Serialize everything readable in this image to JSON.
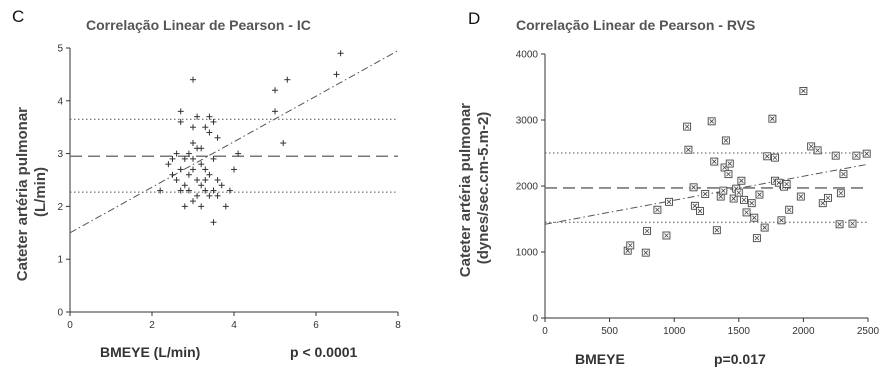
{
  "chart_data": [
    {
      "type": "scatter",
      "panel": "C",
      "title": "Correlação Linear de Pearson - IC",
      "xlabel": "BMEYE (L/min)",
      "ylabel": [
        "Cateter artéria pulmonar",
        "(L/min)"
      ],
      "annotation": "p < 0.0001",
      "xlim": [
        0,
        8
      ],
      "ylim": [
        0,
        5
      ],
      "xticks": [
        0,
        2,
        4,
        6,
        8
      ],
      "yticks": [
        0,
        1,
        2,
        3,
        4,
        5
      ],
      "marker": "plus",
      "grid": false,
      "regression_line": {
        "x": [
          0,
          8
        ],
        "y": [
          1.5,
          4.95
        ]
      },
      "mean_line": 2.95,
      "limit_lines": [
        3.65,
        2.27
      ],
      "points": [
        [
          2.2,
          2.3
        ],
        [
          2.4,
          2.8
        ],
        [
          2.5,
          2.6
        ],
        [
          2.5,
          2.9
        ],
        [
          2.6,
          2.5
        ],
        [
          2.6,
          3.0
        ],
        [
          2.7,
          2.3
        ],
        [
          2.7,
          2.7
        ],
        [
          2.7,
          3.6
        ],
        [
          2.7,
          3.8
        ],
        [
          2.8,
          2.0
        ],
        [
          2.8,
          2.4
        ],
        [
          2.8,
          2.9
        ],
        [
          2.9,
          2.6
        ],
        [
          2.9,
          3.0
        ],
        [
          2.9,
          2.3
        ],
        [
          3.0,
          2.1
        ],
        [
          3.0,
          2.7
        ],
        [
          3.0,
          3.2
        ],
        [
          3.0,
          3.5
        ],
        [
          3.0,
          2.9
        ],
        [
          3.0,
          4.4
        ],
        [
          3.1,
          2.2
        ],
        [
          3.1,
          2.5
        ],
        [
          3.1,
          3.1
        ],
        [
          3.1,
          3.7
        ],
        [
          3.2,
          2.0
        ],
        [
          3.2,
          2.4
        ],
        [
          3.2,
          2.8
        ],
        [
          3.2,
          3.1
        ],
        [
          3.3,
          2.3
        ],
        [
          3.3,
          2.5
        ],
        [
          3.3,
          2.7
        ],
        [
          3.3,
          3.5
        ],
        [
          3.4,
          2.2
        ],
        [
          3.4,
          2.6
        ],
        [
          3.4,
          3.4
        ],
        [
          3.4,
          3.7
        ],
        [
          3.5,
          1.7
        ],
        [
          3.5,
          2.3
        ],
        [
          3.5,
          2.9
        ],
        [
          3.5,
          3.6
        ],
        [
          3.6,
          2.2
        ],
        [
          3.6,
          2.5
        ],
        [
          3.6,
          3.3
        ],
        [
          3.7,
          2.4
        ],
        [
          3.8,
          2.0
        ],
        [
          3.9,
          2.3
        ],
        [
          4.0,
          2.7
        ],
        [
          4.1,
          3.0
        ],
        [
          5.0,
          3.8
        ],
        [
          5.0,
          4.2
        ],
        [
          5.2,
          3.2
        ],
        [
          5.3,
          4.4
        ],
        [
          6.5,
          4.5
        ],
        [
          6.6,
          4.9
        ]
      ]
    },
    {
      "type": "scatter",
      "panel": "D",
      "title": "Correlação Linear de Pearson - RVS",
      "xlabel": "BMEYE",
      "ylabel": [
        "Cateter artéria pulmonar",
        "(dynes/sec.cm-5.m-2)"
      ],
      "annotation": "p=0.017",
      "xlim": [
        0,
        2500
      ],
      "ylim": [
        0,
        4000
      ],
      "xticks": [
        0,
        500,
        1000,
        1500,
        2000,
        2500
      ],
      "yticks": [
        0,
        1000,
        2000,
        3000,
        4000
      ],
      "marker": "boxed-x",
      "grid": false,
      "regression_line": {
        "x": [
          0,
          2500
        ],
        "y": [
          1420,
          2330
        ]
      },
      "mean_line": 1970,
      "limit_lines": [
        2500,
        1450
      ],
      "points": [
        [
          640,
          1020
        ],
        [
          660,
          1100
        ],
        [
          780,
          990
        ],
        [
          790,
          1320
        ],
        [
          870,
          1640
        ],
        [
          940,
          1250
        ],
        [
          960,
          1760
        ],
        [
          1100,
          2900
        ],
        [
          1110,
          2550
        ],
        [
          1150,
          1980
        ],
        [
          1160,
          1700
        ],
        [
          1200,
          1620
        ],
        [
          1240,
          1880
        ],
        [
          1290,
          2980
        ],
        [
          1310,
          2370
        ],
        [
          1330,
          1330
        ],
        [
          1360,
          1840
        ],
        [
          1380,
          1930
        ],
        [
          1390,
          2280
        ],
        [
          1400,
          2690
        ],
        [
          1420,
          2180
        ],
        [
          1430,
          2340
        ],
        [
          1460,
          1810
        ],
        [
          1480,
          1960
        ],
        [
          1500,
          1900
        ],
        [
          1520,
          2080
        ],
        [
          1540,
          1790
        ],
        [
          1560,
          1600
        ],
        [
          1600,
          1740
        ],
        [
          1620,
          1520
        ],
        [
          1640,
          1210
        ],
        [
          1660,
          1870
        ],
        [
          1700,
          1370
        ],
        [
          1720,
          2450
        ],
        [
          1760,
          3020
        ],
        [
          1780,
          2430
        ],
        [
          1780,
          2080
        ],
        [
          1810,
          2050
        ],
        [
          1830,
          1480
        ],
        [
          1850,
          1990
        ],
        [
          1870,
          2030
        ],
        [
          1890,
          1640
        ],
        [
          1980,
          1840
        ],
        [
          2000,
          3440
        ],
        [
          2060,
          2600
        ],
        [
          2110,
          2540
        ],
        [
          2150,
          1740
        ],
        [
          2190,
          1820
        ],
        [
          2250,
          2460
        ],
        [
          2280,
          1420
        ],
        [
          2290,
          1890
        ],
        [
          2310,
          2180
        ],
        [
          2380,
          1430
        ],
        [
          2410,
          2460
        ],
        [
          2490,
          2490
        ]
      ]
    }
  ]
}
